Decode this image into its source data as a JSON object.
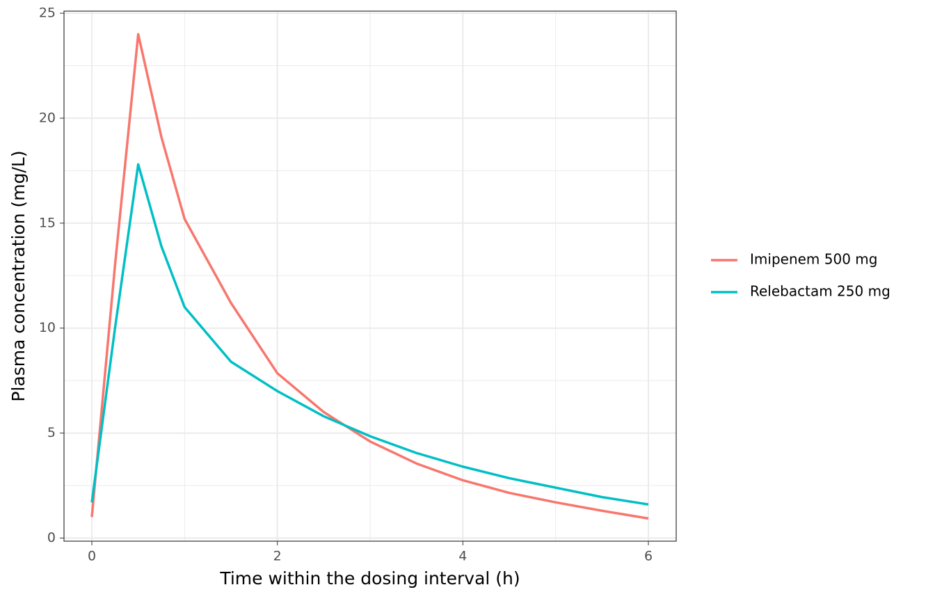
{
  "chart_data": {
    "type": "line",
    "xlabel": "Time within the dosing interval (h)",
    "ylabel": "Plasma concentration (mg/L)",
    "x": [
      0,
      0.25,
      0.5,
      0.75,
      1,
      1.5,
      2,
      2.5,
      3,
      3.5,
      4,
      4.5,
      5,
      5.5,
      6
    ],
    "series": [
      {
        "name": "Imipenem 500 mg",
        "color": "#f8766d",
        "values": [
          1.0,
          13.0,
          24.0,
          19.1,
          15.2,
          11.2,
          7.85,
          6.0,
          4.6,
          3.55,
          2.75,
          2.15,
          1.7,
          1.3,
          0.93
        ]
      },
      {
        "name": "Relebactam 250 mg",
        "color": "#00bfc4",
        "values": [
          1.7,
          10.0,
          17.8,
          13.9,
          11.0,
          8.4,
          7.0,
          5.8,
          4.85,
          4.05,
          3.4,
          2.85,
          2.4,
          1.95,
          1.6
        ]
      }
    ],
    "xlim": [
      -0.3,
      6.3
    ],
    "xticks": [
      0,
      2,
      4,
      6
    ],
    "xminor": [
      1,
      3,
      5
    ],
    "ylim": [
      -0.15,
      25.1
    ],
    "yticks": [
      0,
      5,
      10,
      15,
      20,
      25
    ],
    "yminor": [
      2.5,
      7.5,
      12.5,
      17.5,
      22.5
    ],
    "grid": true,
    "legend": "right"
  }
}
